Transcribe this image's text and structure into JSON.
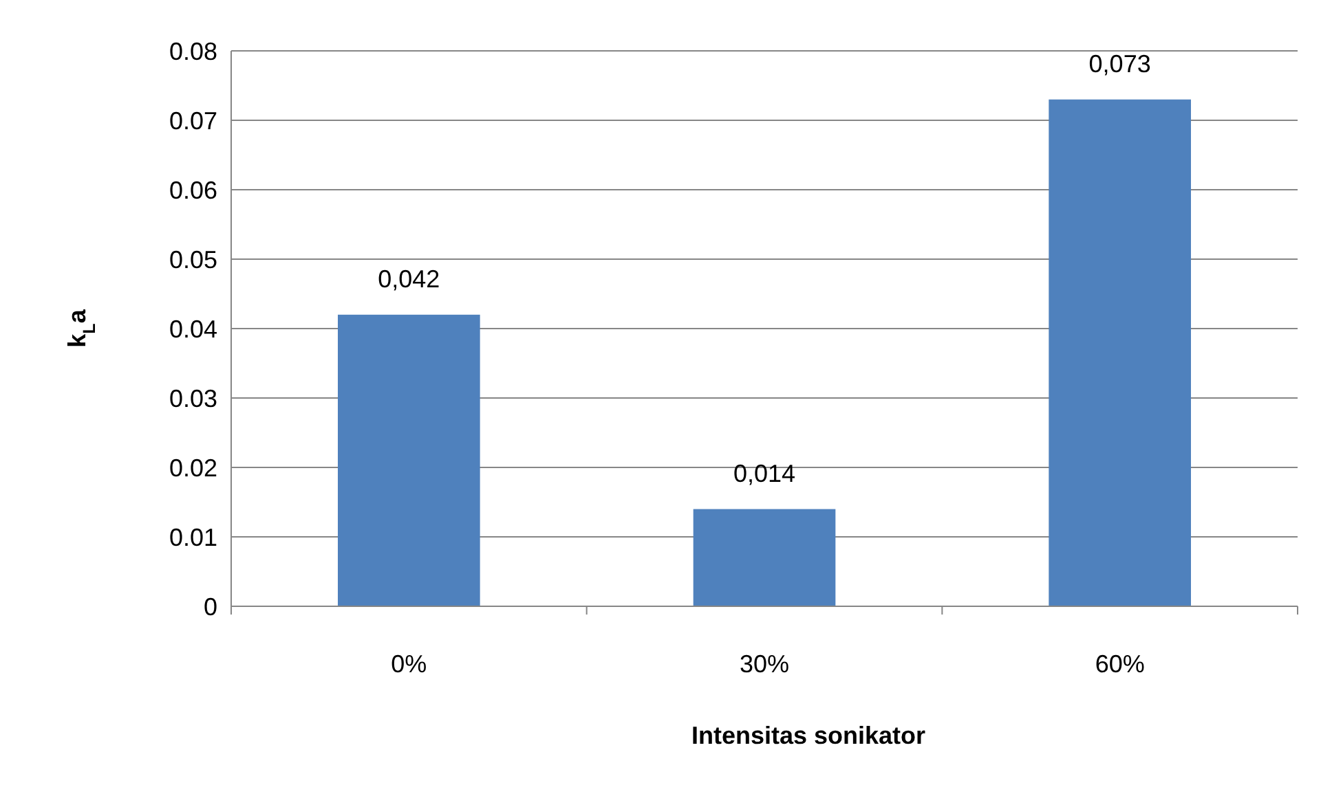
{
  "chart_data": {
    "type": "bar",
    "xlabel": "Intensitas sonikator",
    "ylabel": "k$_{L}$a",
    "categories": [
      "0%",
      "30%",
      "60%"
    ],
    "values": [
      0.042,
      0.014,
      0.073
    ],
    "value_labels": [
      "0,042",
      "0,014",
      "0,073"
    ],
    "color": "#4f81bd",
    "ylim": [
      0,
      0.08
    ],
    "yticks": [
      0,
      0.01,
      0.02,
      0.03,
      0.04,
      0.05,
      0.06,
      0.07,
      0.08
    ],
    "grid": "y"
  }
}
